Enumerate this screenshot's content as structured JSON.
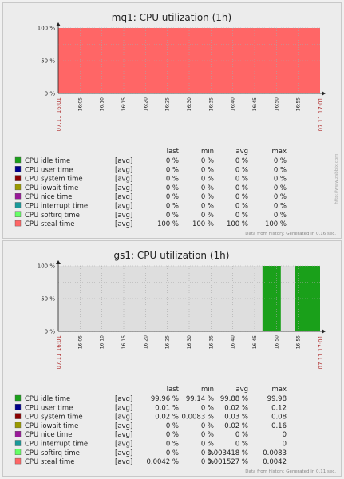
{
  "chart_data": [
    {
      "type": "area",
      "title": "mq1: CPU utilization (1h)",
      "y_ticks": [
        "100 %",
        "50 %",
        "0 %"
      ],
      "ylim": [
        0,
        100
      ],
      "x_start_label": "07.11 16:01",
      "x_end_label": "07.11 17:01",
      "x_ticks": [
        "16:05",
        "16:10",
        "16:15",
        "16:20",
        "16:25",
        "16:30",
        "16:35",
        "16:40",
        "16:45",
        "16:50",
        "16:55"
      ],
      "fill_color": "#ff6666",
      "fill_start": 0,
      "fill_end": 1,
      "columns": [
        "last",
        "min",
        "avg",
        "max"
      ],
      "legend": [
        {
          "name": "CPU idle time",
          "func": "[avg]",
          "color": "#1aa01a",
          "values": [
            "0 %",
            "0 %",
            "0 %",
            "0 %"
          ]
        },
        {
          "name": "CPU user time",
          "func": "[avg]",
          "color": "#00008b",
          "values": [
            "0 %",
            "0 %",
            "0 %",
            "0 %"
          ]
        },
        {
          "name": "CPU system time",
          "func": "[avg]",
          "color": "#8b0000",
          "values": [
            "0 %",
            "0 %",
            "0 %",
            "0 %"
          ]
        },
        {
          "name": "CPU iowait time",
          "func": "[avg]",
          "color": "#9a9a00",
          "values": [
            "0 %",
            "0 %",
            "0 %",
            "0 %"
          ]
        },
        {
          "name": "CPU nice time",
          "func": "[avg]",
          "color": "#9a1a9a",
          "values": [
            "0 %",
            "0 %",
            "0 %",
            "0 %"
          ]
        },
        {
          "name": "CPU interrupt time",
          "func": "[avg]",
          "color": "#1a9a9a",
          "values": [
            "0 %",
            "0 %",
            "0 %",
            "0 %"
          ]
        },
        {
          "name": "CPU softirq time",
          "func": "[avg]",
          "color": "#66ff66",
          "values": [
            "0 %",
            "0 %",
            "0 %",
            "0 %"
          ]
        },
        {
          "name": "CPU steal time",
          "func": "[avg]",
          "color": "#ff6666",
          "values": [
            "100 %",
            "100 %",
            "100 %",
            "100 %"
          ]
        }
      ],
      "footer": "Data from history. Generated in 0.16 sec.",
      "side_text": "http://www.zabbix.com"
    },
    {
      "type": "area",
      "title": "gs1: CPU utilization (1h)",
      "y_ticks": [
        "100 %",
        "50 %",
        "0 %"
      ],
      "ylim": [
        0,
        100
      ],
      "x_start_label": "07.11 16:01",
      "x_end_label": "07.11 17:01",
      "x_ticks": [
        "16:05",
        "16:10",
        "16:15",
        "16:20",
        "16:25",
        "16:30",
        "16:35",
        "16:40",
        "16:45",
        "16:50",
        "16:55"
      ],
      "green_color": "#1aa01a",
      "green_segments": [
        [
          0.78,
          0.85
        ],
        [
          0.905,
          1.0
        ]
      ],
      "columns": [
        "last",
        "min",
        "avg",
        "max"
      ],
      "legend": [
        {
          "name": "CPU idle time",
          "func": "[avg]",
          "color": "#1aa01a",
          "values": [
            "99.96 %",
            "99.14 %",
            "99.88 %",
            "99.98"
          ]
        },
        {
          "name": "CPU user time",
          "func": "[avg]",
          "color": "#00008b",
          "values": [
            "0.01 %",
            "0 %",
            "0.02 %",
            "0.12"
          ]
        },
        {
          "name": "CPU system time",
          "func": "[avg]",
          "color": "#8b0000",
          "values": [
            "0.02 %",
            "0.0083 %",
            "0.03 %",
            "0.08"
          ]
        },
        {
          "name": "CPU iowait time",
          "func": "[avg]",
          "color": "#9a9a00",
          "values": [
            "0 %",
            "0 %",
            "0.02 %",
            "0.16"
          ]
        },
        {
          "name": "CPU nice time",
          "func": "[avg]",
          "color": "#9a1a9a",
          "values": [
            "0 %",
            "0 %",
            "0 %",
            "0"
          ]
        },
        {
          "name": "CPU interrupt time",
          "func": "[avg]",
          "color": "#1a9a9a",
          "values": [
            "0 %",
            "0 %",
            "0 %",
            "0"
          ]
        },
        {
          "name": "CPU softirq time",
          "func": "[avg]",
          "color": "#66ff66",
          "values": [
            "0 %",
            "0 %",
            "0.003418 %",
            "0.0083"
          ]
        },
        {
          "name": "CPU steal time",
          "func": "[avg]",
          "color": "#ff6666",
          "values": [
            "0.0042 %",
            "0 %",
            "0.001527 %",
            "0.0042"
          ]
        }
      ],
      "footer": "Data from history. Generated in 0.11 sec."
    }
  ]
}
